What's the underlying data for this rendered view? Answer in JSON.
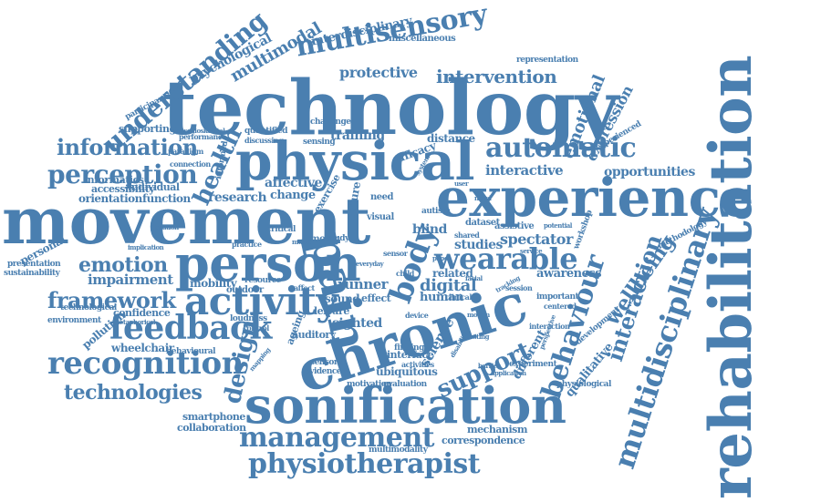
{
  "colors": {
    "word": "#4a7fb0",
    "background": "#ffffff"
  },
  "words": [
    "technology",
    "movement",
    "experience",
    "physical",
    "rehabilitation",
    "sonification",
    "chronic",
    "person",
    "pain",
    "activity",
    "multidisciplinary",
    "feedback",
    "recognition",
    "body",
    "management",
    "physiotherapist",
    "behaviour",
    "wearable",
    "interaction",
    "perception",
    "multisensory",
    "automatic",
    "understanding",
    "information",
    "health",
    "technologies",
    "framework",
    "emotion",
    "wellbeing",
    "support",
    "design",
    "intervention",
    "emotional",
    "multimodal",
    "interdisciplinary",
    "psychological",
    "protective",
    "expression",
    "opportunities",
    "spectator",
    "interactive",
    "digital",
    "impairment",
    "research",
    "sighted",
    "runner",
    "science",
    "blind",
    "studies",
    "human",
    "awareness",
    "qualitative",
    "different",
    "affective",
    "change",
    "training",
    "distance",
    "efficacy",
    "mobility",
    "confidence",
    "orientation",
    "function",
    "personal",
    "presentation",
    "sustainability",
    "environment",
    "pollution",
    "technological",
    "wheelchair",
    "behavioural",
    "smartphone",
    "collaboration",
    "mechanism",
    "correspondence",
    "multimodality",
    "ubiquitous",
    "assistive",
    "related",
    "auditory",
    "sound",
    "effect",
    "dataset",
    "workshop",
    "miscellaneous",
    "representation",
    "supporting",
    "participant",
    "individual",
    "informatics",
    "accessibility",
    "exercise",
    "nature",
    "motor",
    "leisure",
    "ageing",
    "outdoor",
    "resource",
    "visual",
    "experiment",
    "sensory",
    "evidence",
    "motivation",
    "evaluation",
    "finding",
    "interface",
    "activities",
    "experienced",
    "physiological",
    "methodology",
    "development",
    "interaction",
    "important",
    "centered",
    "session",
    "challenge",
    "sensing",
    "autism",
    "need",
    "quantified",
    "discussing",
    "informed",
    "connection",
    "paradigm",
    "performance",
    "musculoskeletal",
    "implication",
    "iteration",
    "critical",
    "metaphorical",
    "loudness",
    "control",
    "practice",
    "affect",
    "study",
    "child",
    "sensor",
    "clinical",
    "device",
    "shared",
    "motion",
    "perspective",
    "disability",
    "system",
    "music",
    "novel",
    "user",
    "paper",
    "testing",
    "everyday",
    "tracking",
    "facial",
    "service",
    "potential",
    "barrier",
    "application",
    "mapping"
  ]
}
